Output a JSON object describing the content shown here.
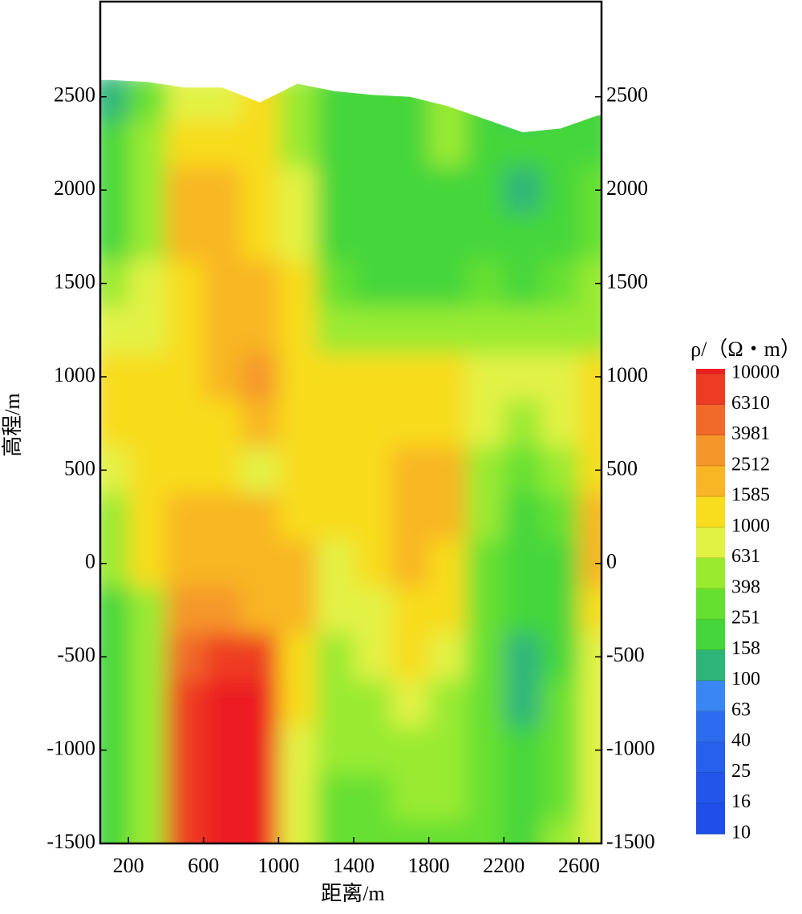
{
  "chart_data": {
    "type": "contour",
    "x_label": "距离/m",
    "y_label": "高程/m",
    "colorbar_title": "ρ/（Ω・m）",
    "xlim": [
      50,
      2720
    ],
    "ylim": [
      -1500,
      3010
    ],
    "xticks": [
      200,
      600,
      1000,
      1400,
      1800,
      2200,
      2600
    ],
    "yticks": [
      -1500,
      -1000,
      -500,
      0,
      500,
      1000,
      1500,
      2000,
      2500
    ],
    "levels": [
      10,
      16,
      25,
      40,
      63,
      100,
      158,
      251,
      398,
      631,
      1000,
      1585,
      2512,
      3981,
      6310,
      10000
    ],
    "colors": [
      "#1f4fe8",
      "#2256ea",
      "#2660ec",
      "#2c6cef",
      "#3a86f2",
      "#2fb57a",
      "#44d63a",
      "#66e030",
      "#9aea30",
      "#e2f244",
      "#f8dc1e",
      "#f8b624",
      "#f5962a",
      "#f06a2a",
      "#ee3c24",
      "#ec1e22"
    ],
    "grid": {
      "x": [
        100,
        300,
        500,
        700,
        900,
        1100,
        1300,
        1500,
        1700,
        1900,
        2100,
        2300,
        2500,
        2700
      ],
      "y": [
        2500,
        2250,
        2000,
        1750,
        1500,
        1250,
        1000,
        750,
        500,
        250,
        0,
        -250,
        -500,
        -750,
        -1000,
        -1250,
        -1500
      ],
      "values": [
        [
          100,
          300,
          700,
          900,
          1300,
          600,
          250,
          200,
          250,
          600,
          200,
          100,
          200,
          200
        ],
        [
          200,
          400,
          1100,
          1300,
          1500,
          600,
          200,
          200,
          200,
          600,
          200,
          200,
          200,
          250
        ],
        [
          200,
          400,
          1800,
          2000,
          1400,
          700,
          200,
          180,
          180,
          200,
          200,
          150,
          250,
          300
        ],
        [
          200,
          500,
          1800,
          2000,
          1400,
          900,
          200,
          180,
          180,
          180,
          200,
          180,
          250,
          300
        ],
        [
          400,
          700,
          1500,
          1900,
          1700,
          1000,
          300,
          250,
          250,
          250,
          300,
          250,
          300,
          400
        ],
        [
          700,
          900,
          1300,
          2000,
          1900,
          1100,
          600,
          500,
          500,
          600,
          600,
          500,
          500,
          600
        ],
        [
          1100,
          1100,
          1200,
          1800,
          2600,
          1000,
          1000,
          1200,
          1100,
          1000,
          900,
          700,
          800,
          1000
        ],
        [
          1000,
          1100,
          1200,
          1500,
          1700,
          1000,
          1100,
          1300,
          1200,
          1100,
          800,
          500,
          700,
          1000
        ],
        [
          700,
          1000,
          1300,
          1300,
          900,
          1200,
          1000,
          1500,
          1700,
          1600,
          500,
          300,
          400,
          1500
        ],
        [
          500,
          1200,
          1800,
          1800,
          1700,
          1500,
          1000,
          1300,
          1700,
          1700,
          400,
          250,
          300,
          1600
        ],
        [
          400,
          1000,
          2500,
          2500,
          1800,
          1600,
          900,
          1000,
          1600,
          1500,
          350,
          200,
          250,
          2000
        ],
        [
          250,
          600,
          3500,
          3500,
          2500,
          1600,
          700,
          900,
          1200,
          1100,
          300,
          180,
          250,
          1200
        ],
        [
          200,
          400,
          5000,
          8000,
          8000,
          1500,
          600,
          800,
          1000,
          700,
          300,
          130,
          250,
          800
        ],
        [
          200,
          400,
          6500,
          10000,
          10000,
          1200,
          500,
          600,
          700,
          600,
          300,
          150,
          300,
          800
        ],
        [
          200,
          400,
          7000,
          10000,
          10000,
          900,
          400,
          400,
          500,
          500,
          300,
          200,
          300,
          900
        ],
        [
          200,
          400,
          7000,
          10000,
          10000,
          800,
          350,
          350,
          400,
          400,
          300,
          200,
          350,
          900
        ],
        [
          200,
          400,
          7000,
          10000,
          10000,
          800,
          350,
          300,
          350,
          350,
          300,
          250,
          400,
          800
        ]
      ],
      "surface": [
        2590,
        2580,
        2550,
        2550,
        2470,
        2570,
        2530,
        2510,
        2500,
        2450,
        2380,
        2310,
        2330,
        2400
      ]
    }
  }
}
